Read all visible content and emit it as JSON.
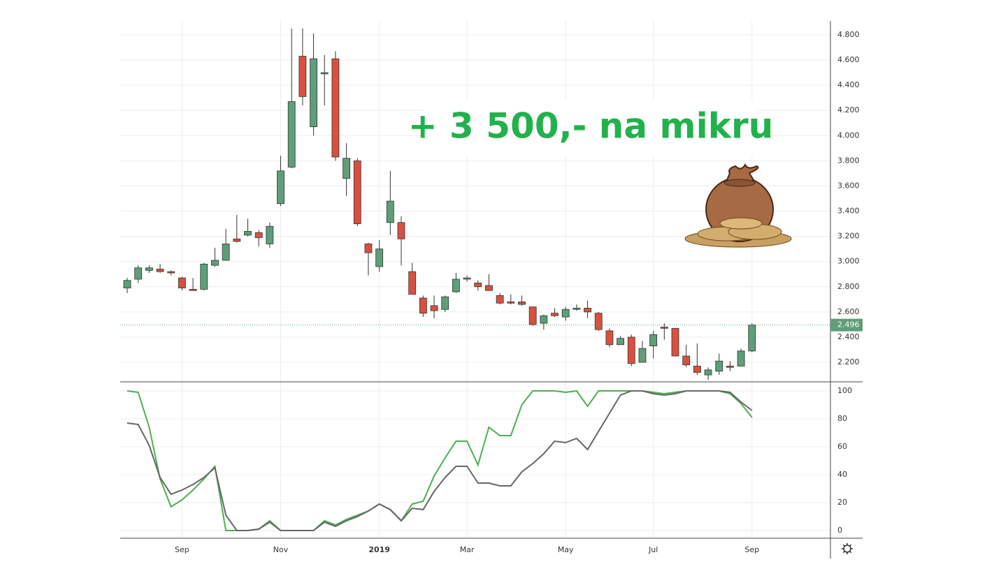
{
  "chart_data": [
    {
      "type": "candlestick",
      "annotation": "+ 3 500,- na mikru",
      "categories": [
        null,
        null,
        null,
        null,
        null,
        "Sep",
        null,
        null,
        null,
        null,
        null,
        null,
        null,
        null,
        "Nov",
        null,
        null,
        null,
        null,
        null,
        null,
        null,
        null,
        "2019",
        null,
        null,
        null,
        null,
        null,
        null,
        null,
        "Mar",
        null,
        null,
        null,
        null,
        null,
        null,
        null,
        null,
        "May",
        null,
        null,
        null,
        null,
        null,
        null,
        null,
        "Jul",
        null,
        null,
        null,
        null,
        null,
        null,
        null,
        null,
        "Sep"
      ],
      "open": [
        2.79,
        2.86,
        2.93,
        2.94,
        2.92,
        2.87,
        2.78,
        2.78,
        2.97,
        3.01,
        3.18,
        3.21,
        3.23,
        3.14,
        3.46,
        3.75,
        4.63,
        4.07,
        4.49,
        4.61,
        3.66,
        3.8,
        3.14,
        2.96,
        3.31,
        3.31,
        2.92,
        2.71,
        2.65,
        2.62,
        2.76,
        2.86,
        2.83,
        2.81,
        2.73,
        2.68,
        2.68,
        2.64,
        2.51,
        2.59,
        2.56,
        2.62,
        2.63,
        2.59,
        2.45,
        2.34,
        2.4,
        2.2,
        2.33,
        2.48,
        2.47,
        2.25,
        2.17,
        2.1,
        2.13,
        2.17,
        2.17,
        2.29
      ],
      "high": [
        2.87,
        2.97,
        2.97,
        2.98,
        2.93,
        2.88,
        2.87,
        2.99,
        3.11,
        3.26,
        3.37,
        3.34,
        3.25,
        3.31,
        3.84,
        4.85,
        4.85,
        4.81,
        4.64,
        4.67,
        3.94,
        3.82,
        3.15,
        3.17,
        3.72,
        3.36,
        2.99,
        2.73,
        2.73,
        2.73,
        2.91,
        2.89,
        2.85,
        2.9,
        2.75,
        2.74,
        2.73,
        2.64,
        2.58,
        2.63,
        2.64,
        2.66,
        2.69,
        2.6,
        2.47,
        2.41,
        2.42,
        2.37,
        2.45,
        2.51,
        2.47,
        2.34,
        2.35,
        2.16,
        2.27,
        2.21,
        2.31,
        2.51
      ],
      "low": [
        2.75,
        2.83,
        2.91,
        2.91,
        2.89,
        2.77,
        2.77,
        2.77,
        2.96,
        3.01,
        3.15,
        3.2,
        3.12,
        3.11,
        3.44,
        3.74,
        4.24,
        4.0,
        4.24,
        3.8,
        3.52,
        3.28,
        2.89,
        2.92,
        3.21,
        2.97,
        2.74,
        2.56,
        2.55,
        2.6,
        2.75,
        2.84,
        2.77,
        2.77,
        2.66,
        2.66,
        2.65,
        2.49,
        2.46,
        2.56,
        2.53,
        2.61,
        2.55,
        2.45,
        2.32,
        2.34,
        2.17,
        2.2,
        2.23,
        2.38,
        2.25,
        2.16,
        2.1,
        2.06,
        2.1,
        2.13,
        2.17,
        2.28
      ],
      "close": [
        2.85,
        2.95,
        2.95,
        2.92,
        2.91,
        2.79,
        2.77,
        2.98,
        3.01,
        3.14,
        3.16,
        3.24,
        3.19,
        3.28,
        3.72,
        4.27,
        4.31,
        4.61,
        4.5,
        3.83,
        3.82,
        3.3,
        3.07,
        3.1,
        3.48,
        3.18,
        2.74,
        2.59,
        2.61,
        2.72,
        2.86,
        2.87,
        2.8,
        2.77,
        2.67,
        2.67,
        2.66,
        2.5,
        2.57,
        2.57,
        2.62,
        2.63,
        2.6,
        2.46,
        2.34,
        2.39,
        2.19,
        2.31,
        2.42,
        2.47,
        2.25,
        2.18,
        2.12,
        2.14,
        2.21,
        2.16,
        2.29,
        2.496
      ],
      "up_color": "#5e9e79",
      "down_color": "#d9503f",
      "last_price": {
        "value": 2.496,
        "label": "2.496"
      },
      "ylim": [
        2.045,
        4.855
      ],
      "yticks": [
        {
          "value": 2.2,
          "label": "2.200"
        },
        {
          "value": 2.4,
          "label": "2.400"
        },
        {
          "value": 2.6,
          "label": "2.600"
        },
        {
          "value": 2.8,
          "label": "2.800"
        },
        {
          "value": 3.0,
          "label": "3.000"
        },
        {
          "value": 3.2,
          "label": "3.200"
        },
        {
          "value": 3.4,
          "label": "3.400"
        },
        {
          "value": 3.6,
          "label": "3.600"
        },
        {
          "value": 3.8,
          "label": "3.800"
        },
        {
          "value": 4.0,
          "label": "4.000"
        },
        {
          "value": 4.2,
          "label": "4.200"
        },
        {
          "value": 4.4,
          "label": "4.400"
        },
        {
          "value": 4.6,
          "label": "4.600"
        },
        {
          "value": 4.8,
          "label": "4.800"
        }
      ],
      "grid": true
    },
    {
      "type": "line",
      "series": [
        {
          "color": "#4caf50",
          "values": [
            100,
            99,
            74,
            37,
            17,
            22,
            29,
            37,
            46,
            0,
            0,
            0,
            1,
            7,
            0,
            0,
            0,
            0,
            7,
            4,
            8,
            11,
            14,
            19,
            15,
            7,
            19,
            21,
            39,
            52,
            64,
            64,
            47,
            74,
            68,
            68,
            90,
            100,
            100,
            100,
            99,
            100,
            89,
            100,
            100,
            100,
            100,
            100,
            99,
            98,
            99,
            100,
            100,
            100,
            100,
            98,
            91,
            81
          ]
        },
        {
          "color": "#666666",
          "values": [
            77,
            76,
            61,
            38,
            26,
            29,
            33,
            38,
            45,
            11,
            0,
            0,
            1,
            6,
            0,
            0,
            0,
            0,
            6,
            3,
            7,
            10,
            14,
            19,
            15,
            7,
            16,
            15,
            28,
            38,
            46,
            46,
            34,
            34,
            32,
            32,
            42,
            48,
            55,
            64,
            63,
            66,
            58,
            71,
            84,
            97,
            100,
            100,
            98,
            97,
            98,
            100,
            100,
            100,
            100,
            99,
            92,
            86
          ]
        }
      ],
      "ylim": [
        -5,
        106
      ],
      "yticks": [
        0,
        20,
        40,
        60,
        80,
        100
      ],
      "grid": true
    }
  ]
}
